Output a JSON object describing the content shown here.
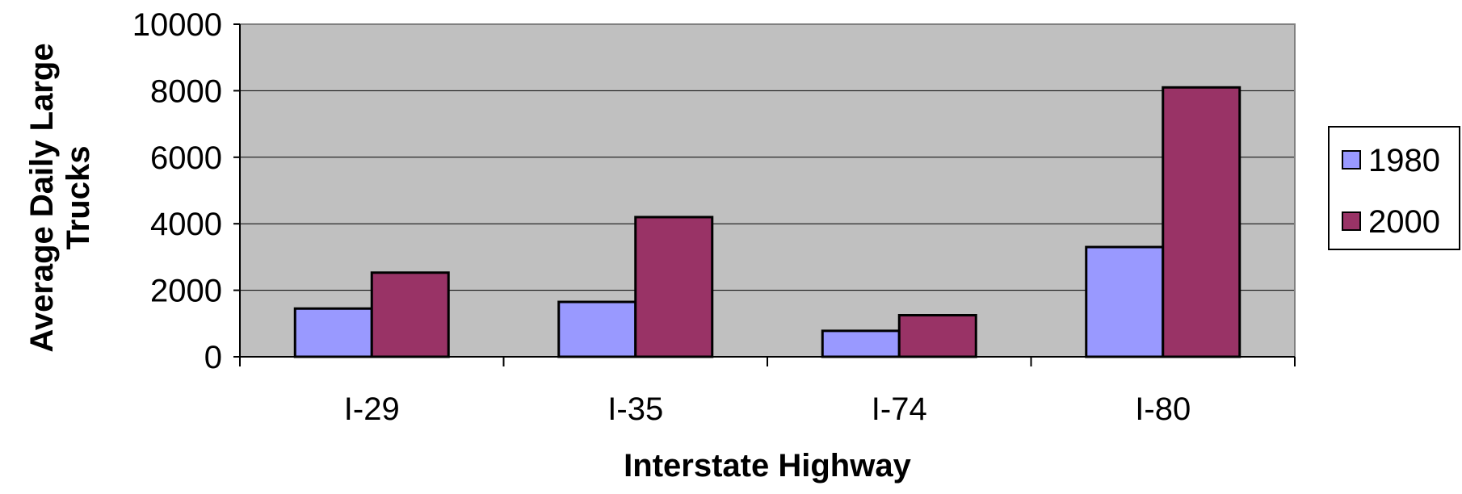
{
  "chart_data": {
    "type": "bar",
    "title": "",
    "xlabel": "Interstate Highway",
    "ylabel_lines": [
      "Average Daily Large",
      "Trucks"
    ],
    "categories": [
      "I-29",
      "I-35",
      "I-74",
      "I-80"
    ],
    "series": [
      {
        "name": "1980",
        "color": "#9999ff",
        "values": [
          1450,
          1650,
          780,
          3300
        ]
      },
      {
        "name": "2000",
        "color": "#993366",
        "values": [
          2530,
          4200,
          1250,
          8100
        ]
      }
    ],
    "ylim": [
      0,
      10000
    ],
    "yticks": [
      "0",
      "2000",
      "4000",
      "6000",
      "8000",
      "10000"
    ],
    "plot_background": "#c0c0c0",
    "grid": true,
    "legend_position": "right"
  }
}
